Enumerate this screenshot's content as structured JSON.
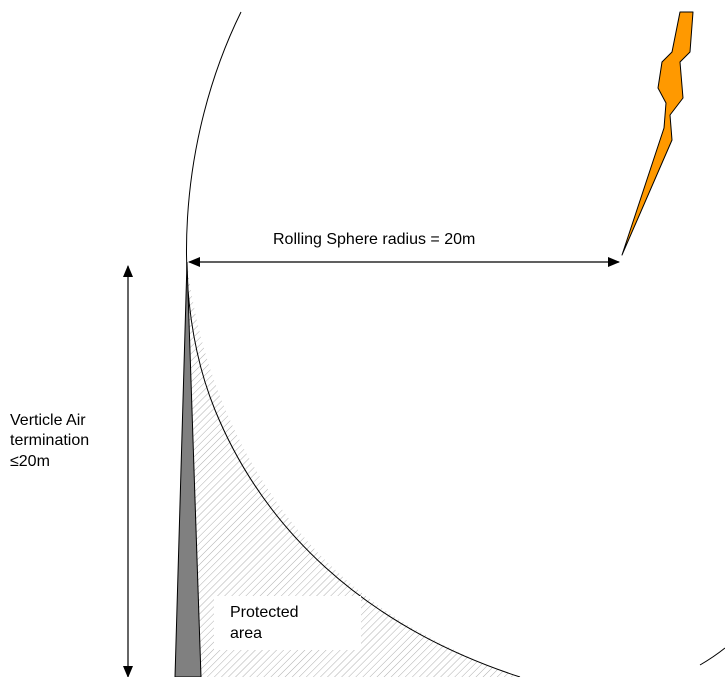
{
  "diagram": {
    "radius_label": "Rolling Sphere radius = 20m",
    "air_termination_label": {
      "line1": "Verticle Air",
      "line2": "termination",
      "line3": "≤20m"
    },
    "protected_area_label": {
      "line1": "Protected",
      "line2": "area"
    }
  },
  "colors": {
    "lightning": "#FF9900",
    "rod": "#808080",
    "hatch": "#999999",
    "line": "#000000",
    "background": "#FFFFFF"
  }
}
